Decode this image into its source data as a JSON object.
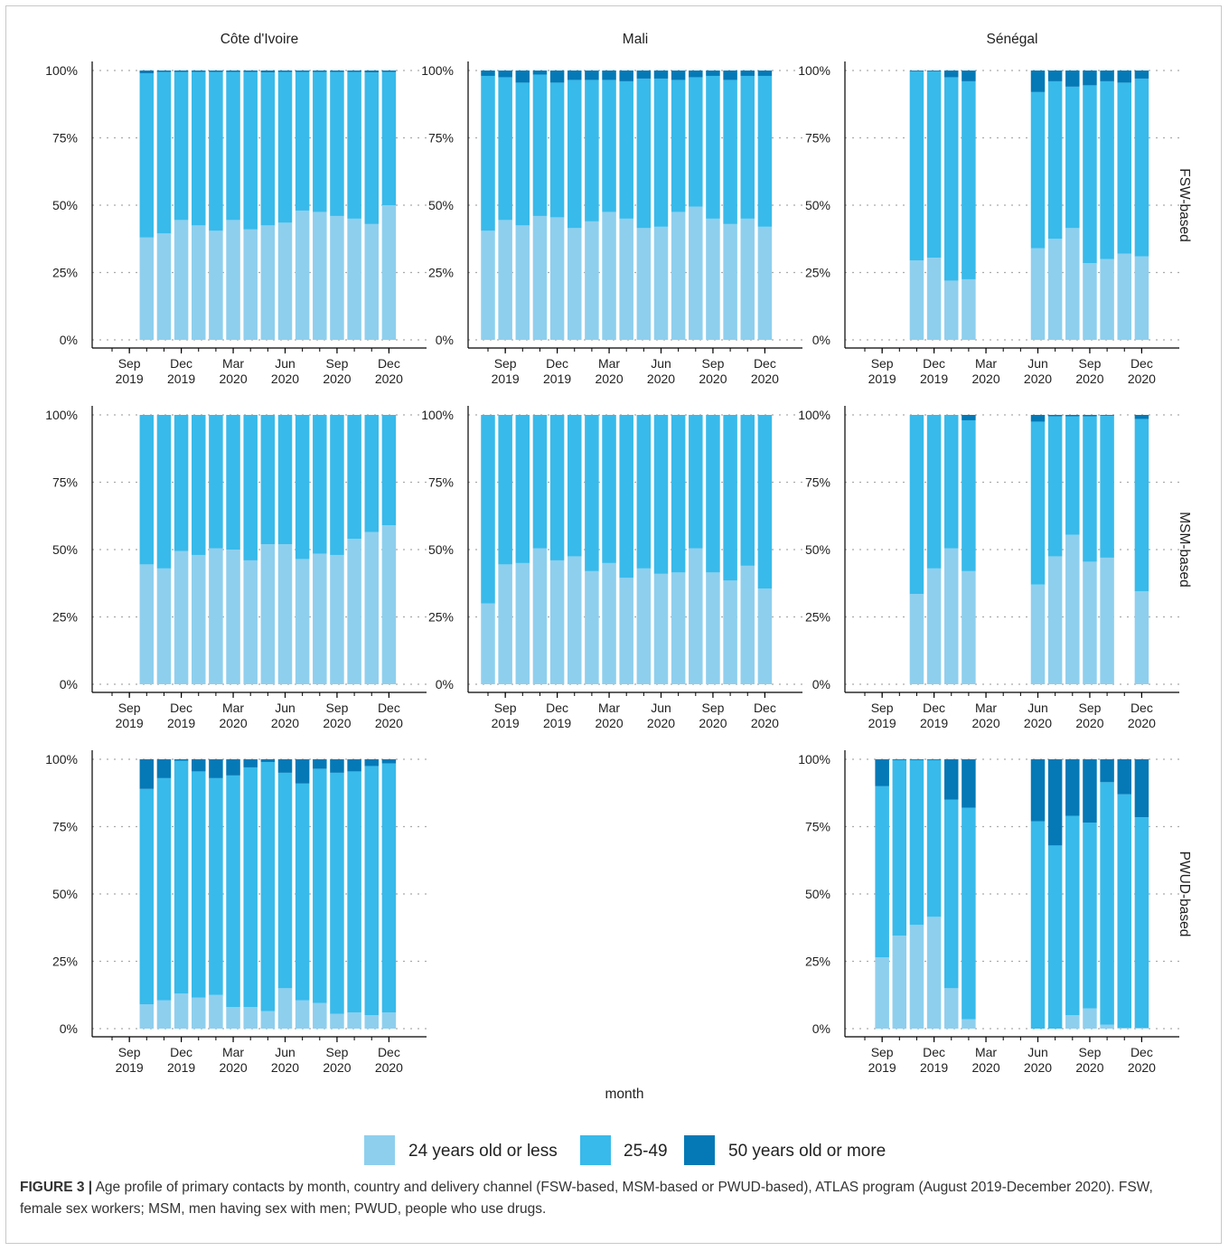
{
  "figure": {
    "caption_lead": "FIGURE 3 |",
    "caption_text": "Age profile of primary contacts by month, country and delivery channel (FSW-based, MSM-based or PWUD-based), ATLAS program (August 2019-December 2020). FSW, female sex workers; MSM, men having sex with men; PWUD, people who use drugs."
  },
  "colors": {
    "young": "#8ecfee",
    "middle": "#38baea",
    "old": "#0479b6",
    "grid": "#aaaaaa",
    "axis": "#000000",
    "text": "#222222"
  },
  "chart_data": {
    "type": "bar",
    "stacked": true,
    "facet_columns": [
      "Côte d'Ivoire",
      "Mali",
      "Sénégal"
    ],
    "facet_rows": [
      "FSW-based",
      "MSM-based",
      "PWUD-based"
    ],
    "xlabel": "month",
    "ylim": [
      0,
      100
    ],
    "y_ticks": [
      "0%",
      "25%",
      "50%",
      "75%",
      "100%"
    ],
    "months": [
      "Aug 2019",
      "Sep 2019",
      "Oct 2019",
      "Nov 2019",
      "Dec 2019",
      "Jan 2020",
      "Feb 2020",
      "Mar 2020",
      "Apr 2020",
      "May 2020",
      "Jun 2020",
      "Jul 2020",
      "Aug 2020",
      "Sep 2020",
      "Oct 2020",
      "Nov 2020",
      "Dec 2020"
    ],
    "x_ticks": [
      {
        "month": "Sep 2019",
        "line1": "Sep",
        "line2": "2019"
      },
      {
        "month": "Dec 2019",
        "line1": "Dec",
        "line2": "2019"
      },
      {
        "month": "Mar 2020",
        "line1": "Mar",
        "line2": "2020"
      },
      {
        "month": "Jun 2020",
        "line1": "Jun",
        "line2": "2020"
      },
      {
        "month": "Sep 2020",
        "line1": "Sep",
        "line2": "2020"
      },
      {
        "month": "Dec 2020",
        "line1": "Dec",
        "line2": "2020"
      }
    ],
    "series": [
      {
        "name": "24 years old or less",
        "color": "#8ecfee"
      },
      {
        "name": "25-49",
        "color": "#38baea"
      },
      {
        "name": "50 years old or more",
        "color": "#0479b6"
      }
    ],
    "panels": [
      {
        "country": "Côte d'Ivoire",
        "channel": "FSW-based",
        "start": "Oct 2019",
        "young": [
          38,
          39.5,
          44.5,
          42.5,
          40.5,
          44.5,
          41,
          42.5,
          43.5,
          48,
          47.5,
          46,
          45,
          43,
          50
        ],
        "old": [
          1,
          0.5,
          0.5,
          0.5,
          0.5,
          0.5,
          0.5,
          0.7,
          0.5,
          0.5,
          0.5,
          0.5,
          0.5,
          0.7,
          0.5
        ]
      },
      {
        "country": "Mali",
        "channel": "FSW-based",
        "start": "Aug 2019",
        "young": [
          40.5,
          44.5,
          42.5,
          46,
          45.5,
          41.5,
          44,
          47.5,
          45,
          41.5,
          42,
          47.5,
          49.5,
          45,
          43,
          45,
          42
        ],
        "old": [
          2,
          2.5,
          4.5,
          1.5,
          4.5,
          3.5,
          3.5,
          3.5,
          4,
          3,
          3,
          3.5,
          2.5,
          2,
          3.5,
          2,
          2
        ]
      },
      {
        "country": "Sénégal",
        "channel": "FSW-based",
        "start": "Nov 2019",
        "young": [
          29.5,
          30.5,
          22,
          22.5,
          null,
          null,
          null,
          34,
          37.5,
          41.5,
          28.5,
          30,
          32,
          31
        ],
        "old": [
          0.3,
          0.3,
          2.5,
          4,
          null,
          null,
          null,
          8,
          4,
          6,
          5.5,
          4,
          4.5,
          3
        ]
      },
      {
        "country": "Côte d'Ivoire",
        "channel": "MSM-based",
        "start": "Oct 2019",
        "young": [
          44.5,
          43,
          49.5,
          48,
          50.5,
          50,
          46,
          52,
          52,
          46.5,
          48.5,
          48,
          54,
          56.5,
          59
        ],
        "old": [
          0,
          0,
          0,
          0,
          0,
          0,
          0,
          0,
          0,
          0,
          0,
          0,
          0,
          0,
          0
        ]
      },
      {
        "country": "Mali",
        "channel": "MSM-based",
        "start": "Aug 2019",
        "young": [
          30,
          44.5,
          45,
          50.5,
          46,
          47.5,
          42,
          45,
          39.5,
          43,
          41,
          41.5,
          50.5,
          41.5,
          38.5,
          44,
          35.5
        ],
        "old": [
          0,
          0,
          0,
          0,
          0,
          0,
          0,
          0,
          0,
          0,
          0,
          0,
          0,
          0,
          0,
          0,
          0
        ]
      },
      {
        "country": "Sénégal",
        "channel": "MSM-based",
        "start": "Nov 2019",
        "young": [
          33.5,
          43,
          50.5,
          42,
          null,
          null,
          null,
          37,
          47.5,
          55.5,
          45.5,
          47,
          null,
          34.5
        ],
        "old": [
          0,
          0,
          0,
          2,
          null,
          null,
          null,
          2.5,
          0.5,
          0.5,
          0.5,
          0.3,
          null,
          1.5
        ]
      },
      {
        "country": "Côte d'Ivoire",
        "channel": "PWUD-based",
        "start": "Oct 2019",
        "young": [
          9,
          10.5,
          13,
          11.5,
          12.5,
          8,
          8,
          6.5,
          15,
          10.5,
          9.5,
          5.5,
          6,
          5,
          6
        ],
        "old": [
          11,
          7,
          0.5,
          4.5,
          7,
          6,
          3,
          1,
          5,
          9,
          3.5,
          5,
          4.5,
          2.5,
          1.5
        ]
      },
      {
        "country": "Sénégal",
        "channel": "PWUD-based",
        "start": "Sep 2019",
        "young": [
          26.5,
          34.5,
          38.5,
          41.5,
          15,
          3.5,
          null,
          null,
          null,
          0,
          0,
          5,
          7.5,
          1.5,
          0.3,
          0.3
        ],
        "old": [
          10,
          0.3,
          0.3,
          0.3,
          15,
          18,
          null,
          null,
          null,
          23,
          32,
          21,
          23.5,
          8.5,
          13,
          21.5
        ]
      }
    ]
  }
}
